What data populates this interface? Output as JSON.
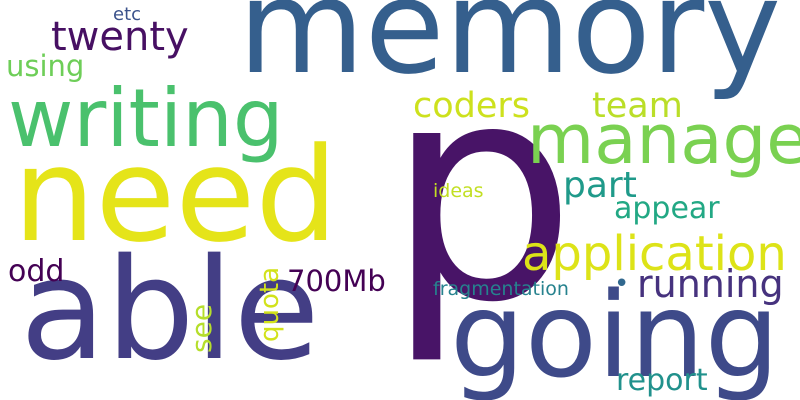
{
  "words": [
    {
      "text": "p",
      "color": "#481467"
    },
    {
      "text": "memory",
      "color": "#355f8d"
    },
    {
      "text": "need",
      "color": "#e5e419"
    },
    {
      "text": "able",
      "color": "#433e85"
    },
    {
      "text": "going",
      "color": "#3e4a89"
    },
    {
      "text": "writing",
      "color": "#4ac16d"
    },
    {
      "text": "manager",
      "color": "#7ad151"
    },
    {
      "text": "application",
      "color": "#dde318"
    },
    {
      "text": "coders",
      "color": "#cde11d"
    },
    {
      "text": "team",
      "color": "#bade28"
    },
    {
      "text": "part",
      "color": "#1f9a8a"
    },
    {
      "text": "appear",
      "color": "#22a884"
    },
    {
      "text": "running",
      "color": "#46327e"
    },
    {
      "text": "twenty",
      "color": "#471063"
    },
    {
      "text": "using",
      "color": "#6ece58"
    },
    {
      "text": "etc",
      "color": "#3b528b"
    },
    {
      "text": "odd",
      "color": "#440154"
    },
    {
      "text": "700Mb",
      "color": "#440154"
    },
    {
      "text": "quota",
      "color": "#d2e21b"
    },
    {
      "text": "see",
      "color": "#b5de2b"
    },
    {
      "text": "ideas",
      "color": "#c2df23"
    },
    {
      "text": "fragmentation",
      "color": "#26828e"
    },
    {
      "text": "report",
      "color": "#21918c"
    },
    {
      "text": "•",
      "color": "#31688e"
    }
  ]
}
